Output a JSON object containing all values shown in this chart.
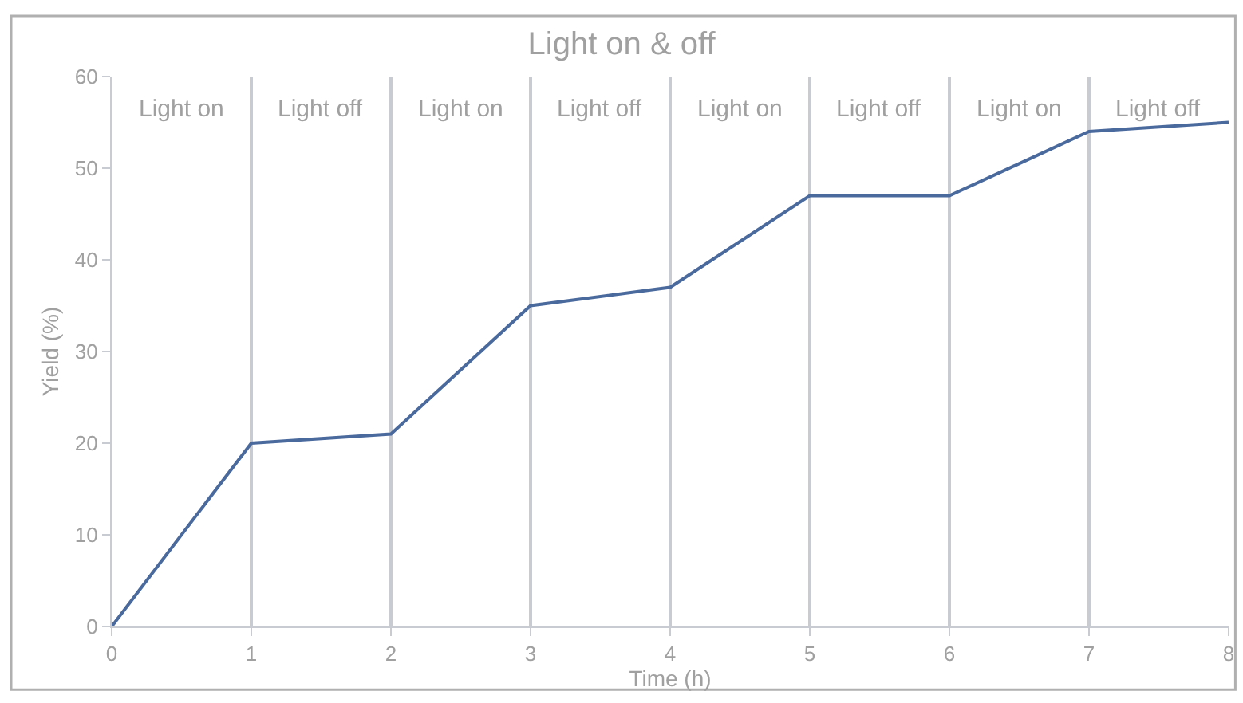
{
  "chart_data": {
    "type": "line",
    "title": "Light on & off",
    "xlabel": "Time (h)",
    "ylabel": "Yield (%)",
    "x": [
      0,
      1,
      2,
      3,
      4,
      5,
      6,
      7,
      8
    ],
    "series": [
      {
        "color": "#4a6a9e",
        "values": [
          0,
          20,
          21,
          35,
          37,
          47,
          47,
          54,
          55
        ]
      }
    ],
    "xlim": [
      0,
      8
    ],
    "xticks": [
      0,
      1,
      2,
      3,
      4,
      5,
      6,
      7,
      8
    ],
    "ylim": [
      0,
      60
    ],
    "yticks": [
      0,
      10,
      20,
      30,
      40,
      50,
      60
    ],
    "grid": "x",
    "marker": "none",
    "line_style": "solid",
    "annotations": [
      "Light on",
      "Light off",
      "Light on",
      "Light off",
      "Light on",
      "Light off",
      "Light on",
      "Light off"
    ]
  }
}
